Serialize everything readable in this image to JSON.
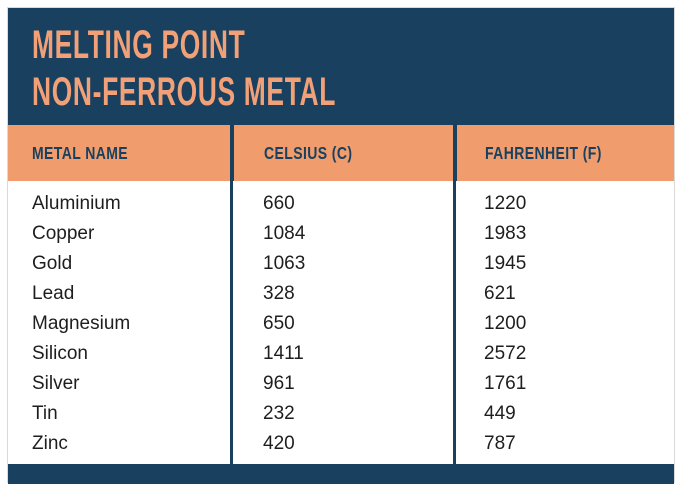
{
  "title": {
    "line1": "MELTING POINT",
    "line2": "NON-FERROUS METAL"
  },
  "table": {
    "columns": [
      "METAL NAME",
      "CELSIUS (C)",
      "FAHRENHEIT (F)"
    ],
    "rows": [
      {
        "metal": "Aluminium",
        "celsius": "660",
        "fahrenheit": "1220"
      },
      {
        "metal": "Copper",
        "celsius": "1084",
        "fahrenheit": "1983"
      },
      {
        "metal": "Gold",
        "celsius": "1063",
        "fahrenheit": "1945"
      },
      {
        "metal": "Lead",
        "celsius": "328",
        "fahrenheit": "621"
      },
      {
        "metal": "Magnesium",
        "celsius": "650",
        "fahrenheit": "1200"
      },
      {
        "metal": "Silicon",
        "celsius": "1411",
        "fahrenheit": "2572"
      },
      {
        "metal": "Silver",
        "celsius": "961",
        "fahrenheit": "1761"
      },
      {
        "metal": "Tin",
        "celsius": "232",
        "fahrenheit": "449"
      },
      {
        "metal": "Zinc",
        "celsius": "420",
        "fahrenheit": "787"
      }
    ]
  },
  "colors": {
    "navy": "#19415F",
    "orange": "#F09C6C",
    "title_orange": "#F2A077",
    "body_text": "#1E1E1E"
  },
  "chart_data": {
    "type": "table",
    "title": "Melting Point Non-Ferrous Metal",
    "columns": [
      "Metal Name",
      "Celsius (C)",
      "Fahrenheit (F)"
    ],
    "rows": [
      [
        "Aluminium",
        660,
        1220
      ],
      [
        "Copper",
        1084,
        1983
      ],
      [
        "Gold",
        1063,
        1945
      ],
      [
        "Lead",
        328,
        621
      ],
      [
        "Magnesium",
        650,
        1200
      ],
      [
        "Silicon",
        1411,
        2572
      ],
      [
        "Silver",
        961,
        1761
      ],
      [
        "Tin",
        232,
        449
      ],
      [
        "Zinc",
        420,
        787
      ]
    ]
  }
}
